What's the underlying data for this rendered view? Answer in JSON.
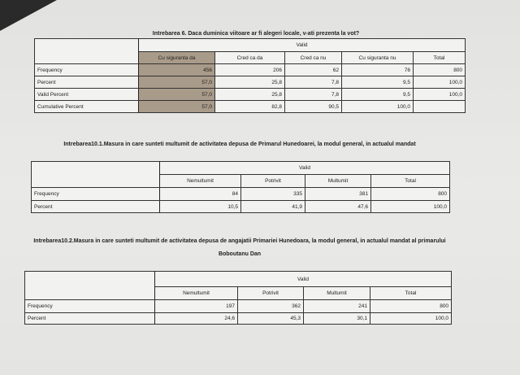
{
  "tables": [
    {
      "title": "Intrebarea 6. Daca duminica viitoare ar fi alegeri locale, v-ati prezenta la vot?",
      "group_header": "Valid",
      "columns": [
        "Cu siguranta da",
        "Cred ca da",
        "Cred ca nu",
        "Cu siguranta nu",
        "Total"
      ],
      "highlighted_column": 0,
      "highlight_color": "#a99b89",
      "rows": [
        {
          "label": "Frequency",
          "values": [
            "456",
            "206",
            "62",
            "76",
            "800"
          ]
        },
        {
          "label": "Percent",
          "values": [
            "57,0",
            "25,8",
            "7,8",
            "9,5",
            "100,0"
          ]
        },
        {
          "label": "Valid Percent",
          "values": [
            "57,0",
            "25,8",
            "7,8",
            "9,5",
            "100,0"
          ]
        },
        {
          "label": "Cumulative Percent",
          "values": [
            "57,0",
            "82,8",
            "90,5",
            "100,0",
            ""
          ]
        }
      ]
    },
    {
      "title": "Intrebarea10.1.Masura in care sunteti multumit de activitatea depusa de Primarul Hunedoarei, la modul general, in actualul mandat",
      "group_header": "Valid",
      "columns": [
        "Nemultumit",
        "Potrivit",
        "Multumit",
        "Total"
      ],
      "rows": [
        {
          "label": "Frequency",
          "values": [
            "84",
            "335",
            "381",
            "800"
          ]
        },
        {
          "label": "Percent",
          "values": [
            "10,5",
            "41,9",
            "47,6",
            "100,0"
          ]
        }
      ]
    },
    {
      "title": "Intrebarea10.2.Masura in care sunteti multumit de activitatea depusa de angajatii Primariei Hunedoara, la modul general, in actualul mandat al primarului Boboutanu Dan",
      "group_header": "Valid",
      "columns": [
        "Nemultumit",
        "Potrivit",
        "Multumit",
        "Total"
      ],
      "rows": [
        {
          "label": "Frequency",
          "values": [
            "197",
            "362",
            "241",
            "800"
          ]
        },
        {
          "label": "Percent",
          "values": [
            "24,6",
            "45,3",
            "30,1",
            "100,0"
          ]
        }
      ]
    }
  ]
}
